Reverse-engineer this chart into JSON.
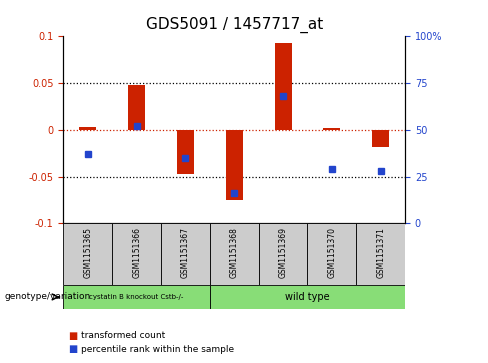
{
  "title": "GDS5091 / 1457717_at",
  "samples": [
    "GSM1151365",
    "GSM1151366",
    "GSM1151367",
    "GSM1151368",
    "GSM1151369",
    "GSM1151370",
    "GSM1151371"
  ],
  "bar_values": [
    0.003,
    0.048,
    -0.047,
    -0.075,
    0.093,
    0.002,
    -0.018
  ],
  "percentile_values": [
    37,
    52,
    35,
    16,
    68,
    29,
    28
  ],
  "ylim_left": [
    -0.1,
    0.1
  ],
  "ylim_right": [
    0,
    100
  ],
  "yticks_left": [
    -0.1,
    -0.05,
    0,
    0.05,
    0.1
  ],
  "yticks_right": [
    0,
    25,
    50,
    75,
    100
  ],
  "bar_color": "#cc2200",
  "dot_color": "#2244cc",
  "zero_line_color": "#cc2200",
  "grid_color": "black",
  "plot_bg": "#ffffff",
  "sample_box_bg": "#cccccc",
  "group_bg": "#88dd77",
  "group1_label": "cystatin B knockout Cstb-/-",
  "group2_label": "wild type",
  "group1_indices": [
    0,
    1,
    2
  ],
  "group2_indices": [
    3,
    4,
    5,
    6
  ],
  "genotype_label": "genotype/variation",
  "legend_bar_label": "transformed count",
  "legend_dot_label": "percentile rank within the sample",
  "title_fontsize": 11,
  "tick_fontsize": 7,
  "label_fontsize": 7
}
